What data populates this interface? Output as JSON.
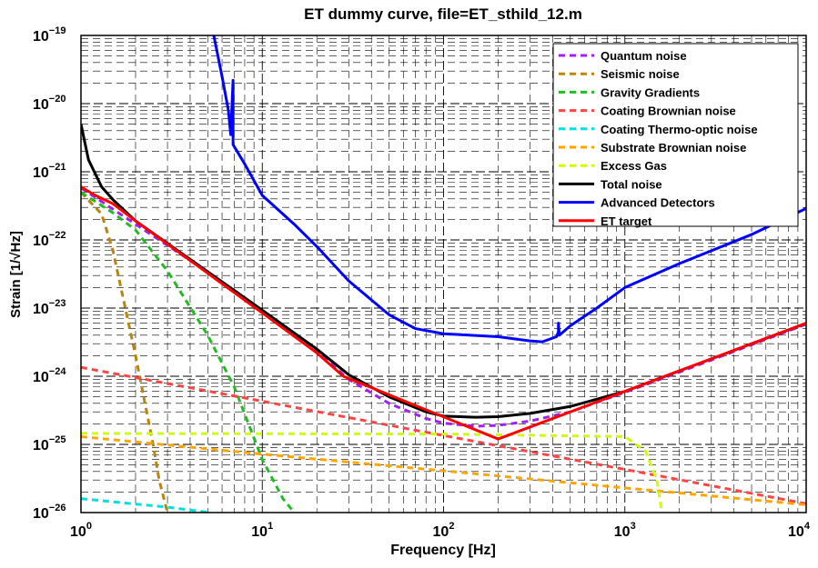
{
  "chart_data": {
    "type": "line",
    "title": "ET dummy curve, file=ET_sthild_12.m",
    "xlabel": "Frequency [Hz]",
    "ylabel": "Strain [1/√Hz]",
    "xscale": "log",
    "yscale": "log",
    "xlim": [
      1,
      10000
    ],
    "ylim": [
      1e-26,
      1e-19
    ],
    "grid": "major and minor, dashed",
    "legend_position": "top-right",
    "x_ticks": [
      {
        "value": 1,
        "base": "10",
        "exp": "0"
      },
      {
        "value": 10,
        "base": "10",
        "exp": "1"
      },
      {
        "value": 100,
        "base": "10",
        "exp": "2"
      },
      {
        "value": 1000,
        "base": "10",
        "exp": "3"
      },
      {
        "value": 10000,
        "base": "10",
        "exp": "4"
      }
    ],
    "y_ticks": [
      {
        "value": 1e-26,
        "base": "10",
        "exp": "−26"
      },
      {
        "value": 1e-25,
        "base": "10",
        "exp": "−25"
      },
      {
        "value": 1e-24,
        "base": "10",
        "exp": "−24"
      },
      {
        "value": 1e-23,
        "base": "10",
        "exp": "−23"
      },
      {
        "value": 1e-22,
        "base": "10",
        "exp": "−22"
      },
      {
        "value": 1e-21,
        "base": "10",
        "exp": "−21"
      },
      {
        "value": 1e-20,
        "base": "10",
        "exp": "−20"
      },
      {
        "value": 1e-19,
        "base": "10",
        "exp": "−19"
      }
    ],
    "series": [
      {
        "name": "Quantum noise",
        "color": "#a020f0",
        "dash": true,
        "points": [
          [
            1,
            5.8e-22
          ],
          [
            2,
            1.7e-22
          ],
          [
            4,
            5e-23
          ],
          [
            10,
            9e-24
          ],
          [
            20,
            2.3e-24
          ],
          [
            30,
            9e-25
          ],
          [
            50,
            4e-25
          ],
          [
            80,
            2.4e-25
          ],
          [
            100,
            2.05e-25
          ],
          [
            150,
            1.85e-25
          ],
          [
            200,
            1.9e-25
          ],
          [
            300,
            2.2e-25
          ],
          [
            500,
            3e-25
          ],
          [
            1000,
            5.8e-25
          ],
          [
            2000,
            1.15e-24
          ],
          [
            5000,
            2.9e-24
          ],
          [
            10000,
            5.8e-24
          ]
        ]
      },
      {
        "name": "Seismic noise",
        "color": "#b8860b",
        "dash": true,
        "points": [
          [
            1,
            5e-22
          ],
          [
            1.3,
            2.4e-22
          ],
          [
            1.5,
            7e-23
          ],
          [
            2,
            2e-24
          ],
          [
            2.5,
            1e-25
          ],
          [
            2.7,
            3e-26
          ],
          [
            3,
            1e-26
          ]
        ]
      },
      {
        "name": "Gravity Gradients",
        "color": "#22bb22",
        "dash": true,
        "points": [
          [
            1,
            5e-22
          ],
          [
            1.5,
            2.5e-22
          ],
          [
            2,
            1.4e-22
          ],
          [
            3,
            3.5e-23
          ],
          [
            5,
            4e-24
          ],
          [
            7,
            7e-25
          ],
          [
            10,
            6e-26
          ],
          [
            13,
            1.6e-26
          ],
          [
            15,
            1e-26
          ]
        ]
      },
      {
        "name": "Coating Brownian noise",
        "color": "#ff4444",
        "dash": true,
        "points": [
          [
            1,
            1.35e-24
          ],
          [
            10,
            4.3e-25
          ],
          [
            100,
            1.35e-25
          ],
          [
            1000,
            4.3e-26
          ],
          [
            10000,
            1.35e-26
          ]
        ]
      },
      {
        "name": "Coating Thermo-optic noise",
        "color": "#00e0e0",
        "dash": true,
        "points": [
          [
            1,
            1.6e-26
          ],
          [
            3,
            1.2e-26
          ],
          [
            5.2,
            1e-26
          ]
        ]
      },
      {
        "name": "Substrate Brownian noise",
        "color": "#ffa500",
        "dash": true,
        "points": [
          [
            1,
            1.3e-25
          ],
          [
            10,
            7.2e-26
          ],
          [
            100,
            4.1e-26
          ],
          [
            1000,
            2.3e-26
          ],
          [
            10000,
            1.3e-26
          ]
        ]
      },
      {
        "name": "Excess Gas",
        "color": "#ccff00",
        "dash": true,
        "points": [
          [
            1,
            1.45e-25
          ],
          [
            100,
            1.42e-25
          ],
          [
            1000,
            1.3e-25
          ],
          [
            1300,
            8e-26
          ],
          [
            1500,
            3e-26
          ],
          [
            1600,
            1e-26
          ]
        ]
      },
      {
        "name": "Total noise",
        "color": "#000000",
        "dash": false,
        "points": [
          [
            1,
            5e-21
          ],
          [
            1.1,
            1.5e-21
          ],
          [
            1.3,
            6e-22
          ],
          [
            1.5,
            3.9e-22
          ],
          [
            2,
            1.9e-22
          ],
          [
            4,
            5.2e-23
          ],
          [
            10,
            9.3e-24
          ],
          [
            20,
            2.5e-24
          ],
          [
            30,
            1.05e-24
          ],
          [
            50,
            5e-25
          ],
          [
            80,
            3e-25
          ],
          [
            100,
            2.6e-25
          ],
          [
            150,
            2.5e-25
          ],
          [
            200,
            2.55e-25
          ],
          [
            300,
            2.85e-25
          ],
          [
            500,
            3.6e-25
          ],
          [
            1000,
            6e-25
          ],
          [
            2000,
            1.2e-24
          ],
          [
            5000,
            3e-24
          ],
          [
            10000,
            6e-24
          ]
        ]
      },
      {
        "name": "Advanced Detectors",
        "color": "#0000ff",
        "dash": false,
        "points": [
          [
            5.4,
            1e-19
          ],
          [
            6,
            2.5e-20
          ],
          [
            6.5,
            8e-21
          ],
          [
            6.7,
            3.5e-21
          ],
          [
            6.9,
            2.2e-20
          ],
          [
            6.9,
            2.5e-21
          ],
          [
            8,
            1.3e-21
          ],
          [
            10,
            4.5e-22
          ],
          [
            15,
            1.7e-22
          ],
          [
            20,
            8e-23
          ],
          [
            30,
            2.5e-23
          ],
          [
            50,
            8e-24
          ],
          [
            70,
            5e-24
          ],
          [
            100,
            4.2e-24
          ],
          [
            200,
            3.8e-24
          ],
          [
            300,
            3.3e-24
          ],
          [
            350,
            3.2e-24
          ],
          [
            420,
            3.8e-24
          ],
          [
            430,
            4.5e-24
          ],
          [
            430,
            6e-24
          ],
          [
            435,
            4e-24
          ],
          [
            500,
            5.5e-24
          ],
          [
            700,
            1e-23
          ],
          [
            1000,
            2e-23
          ],
          [
            2000,
            4.5e-23
          ],
          [
            5000,
            1.2e-22
          ],
          [
            10000,
            2.9e-22
          ]
        ]
      },
      {
        "name": "ET target",
        "color": "#ff0000",
        "dash": false,
        "points": [
          [
            1,
            6e-22
          ],
          [
            1.2,
            4.5e-22
          ],
          [
            1.5,
            3.4e-22
          ],
          [
            2,
            1.9e-22
          ],
          [
            4,
            5e-23
          ],
          [
            10,
            8.5e-24
          ],
          [
            20,
            2.2e-24
          ],
          [
            28,
            1e-24
          ],
          [
            200,
            1.2e-25
          ],
          [
            1000,
            6e-25
          ],
          [
            10000,
            6e-24
          ]
        ]
      }
    ]
  }
}
